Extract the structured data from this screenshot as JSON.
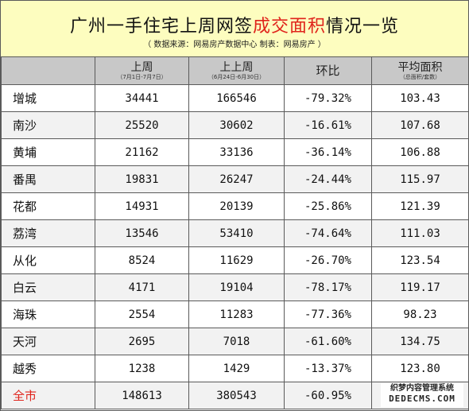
{
  "header": {
    "title_before": "广州一手住宅上周网签",
    "title_highlight": "成交面积",
    "title_after": "情况一览",
    "subtitle": "（ 数据来源：网易房产数据中心  制表：网易房产 ）",
    "highlight_color": "#e0231b"
  },
  "table": {
    "columns": [
      {
        "label": "",
        "sub": ""
      },
      {
        "label": "上周",
        "sub": "（7月1日-7月7日）"
      },
      {
        "label": "上上周",
        "sub": "（6月24日-6月30日）"
      },
      {
        "label": "环比",
        "sub": ""
      },
      {
        "label": "平均面积",
        "sub": "（总面积/套数）"
      }
    ],
    "rows": [
      {
        "region": "增城",
        "last_week": "34441",
        "prev_week": "166546",
        "change": "-79.32%",
        "avg_area": "103.43"
      },
      {
        "region": "南沙",
        "last_week": "25520",
        "prev_week": "30602",
        "change": "-16.61%",
        "avg_area": "107.68"
      },
      {
        "region": "黄埔",
        "last_week": "21162",
        "prev_week": "33136",
        "change": "-36.14%",
        "avg_area": "106.88"
      },
      {
        "region": "番禺",
        "last_week": "19831",
        "prev_week": "26247",
        "change": "-24.44%",
        "avg_area": "115.97"
      },
      {
        "region": "花都",
        "last_week": "14931",
        "prev_week": "20139",
        "change": "-25.86%",
        "avg_area": "121.39"
      },
      {
        "region": "荔湾",
        "last_week": "13546",
        "prev_week": "53410",
        "change": "-74.64%",
        "avg_area": "111.03"
      },
      {
        "region": "从化",
        "last_week": "8524",
        "prev_week": "11629",
        "change": "-26.70%",
        "avg_area": "123.54"
      },
      {
        "region": "白云",
        "last_week": "4171",
        "prev_week": "19104",
        "change": "-78.17%",
        "avg_area": "119.17"
      },
      {
        "region": "海珠",
        "last_week": "2554",
        "prev_week": "11283",
        "change": "-77.36%",
        "avg_area": "98.23"
      },
      {
        "region": "天河",
        "last_week": "2695",
        "prev_week": "7018",
        "change": "-61.60%",
        "avg_area": "134.75"
      },
      {
        "region": "越秀",
        "last_week": "1238",
        "prev_week": "1429",
        "change": "-13.37%",
        "avg_area": "123.80"
      }
    ],
    "total": {
      "region": "全市",
      "last_week": "148613",
      "prev_week": "380543",
      "change": "-60.95%",
      "avg_area": ""
    }
  },
  "watermark": {
    "line1": "织梦内容管理系统",
    "line2": "DEDECMS.COM"
  }
}
